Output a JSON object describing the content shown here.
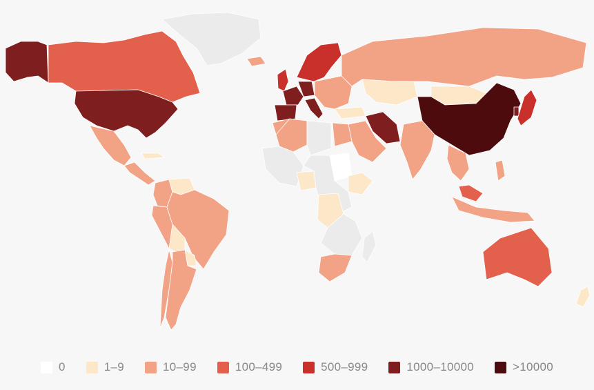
{
  "colors": {
    "no_data": "#ebebeb",
    "zero": "#ffffff",
    "1-9": "#fde7c9",
    "10-99": "#f2a285",
    "100-499": "#e2604c",
    "500-999": "#c9302c",
    "1000-10000": "#7e1e1f",
    ">10000": "#4d0b0d"
  },
  "legend": [
    {
      "label": "0",
      "color": "#ffffff"
    },
    {
      "label": "1–9",
      "color": "#fde7c9"
    },
    {
      "label": "10–99",
      "color": "#f2a285"
    },
    {
      "label": "100–499",
      "color": "#e2604c"
    },
    {
      "label": "500–999",
      "color": "#c9302c"
    },
    {
      "label": "1000–10000",
      "color": "#7e1e1f"
    },
    {
      "label": ">10000",
      "color": "#4d0b0d"
    }
  ],
  "regions": [
    {
      "name": "alaska",
      "bin": "1000-10000"
    },
    {
      "name": "canada",
      "bin": "100-499"
    },
    {
      "name": "greenland",
      "bin": "no_data"
    },
    {
      "name": "usa",
      "bin": "1000-10000"
    },
    {
      "name": "mexico",
      "bin": "10-99"
    },
    {
      "name": "central-america",
      "bin": "10-99"
    },
    {
      "name": "cuba",
      "bin": "1-9"
    },
    {
      "name": "colombia",
      "bin": "10-99"
    },
    {
      "name": "venezuela",
      "bin": "1-9"
    },
    {
      "name": "peru",
      "bin": "10-99"
    },
    {
      "name": "brazil",
      "bin": "10-99"
    },
    {
      "name": "bolivia",
      "bin": "1-9"
    },
    {
      "name": "paraguay",
      "bin": "1-9"
    },
    {
      "name": "chile",
      "bin": "10-99"
    },
    {
      "name": "argentina",
      "bin": "10-99"
    },
    {
      "name": "uk",
      "bin": "500-999"
    },
    {
      "name": "iceland",
      "bin": "10-99"
    },
    {
      "name": "scandinavia",
      "bin": "500-999"
    },
    {
      "name": "france",
      "bin": "1000-10000"
    },
    {
      "name": "spain",
      "bin": "1000-10000"
    },
    {
      "name": "germany",
      "bin": "1000-10000"
    },
    {
      "name": "italy",
      "bin": "1000-10000"
    },
    {
      "name": "eastern-europe",
      "bin": "10-99"
    },
    {
      "name": "russia",
      "bin": "10-99"
    },
    {
      "name": "kazakhstan",
      "bin": "1-9"
    },
    {
      "name": "mongolia",
      "bin": "1-9"
    },
    {
      "name": "china",
      "bin": ">10000"
    },
    {
      "name": "japan",
      "bin": "500-999"
    },
    {
      "name": "south-korea",
      "bin": "1000-10000"
    },
    {
      "name": "iran",
      "bin": "1000-10000"
    },
    {
      "name": "turkey",
      "bin": "1-9"
    },
    {
      "name": "arabia",
      "bin": "10-99"
    },
    {
      "name": "india",
      "bin": "10-99"
    },
    {
      "name": "southeast-asia",
      "bin": "10-99"
    },
    {
      "name": "indonesia",
      "bin": "10-99"
    },
    {
      "name": "malaysia",
      "bin": "100-499"
    },
    {
      "name": "philippines",
      "bin": "10-99"
    },
    {
      "name": "australia",
      "bin": "100-499"
    },
    {
      "name": "new-zealand",
      "bin": "1-9"
    },
    {
      "name": "morocco",
      "bin": "10-99"
    },
    {
      "name": "algeria",
      "bin": "10-99"
    },
    {
      "name": "egypt",
      "bin": "10-99"
    },
    {
      "name": "sahara",
      "bin": "no_data"
    },
    {
      "name": "west-africa",
      "bin": "no_data"
    },
    {
      "name": "nigeria",
      "bin": "1-9"
    },
    {
      "name": "sudan",
      "bin": "zero"
    },
    {
      "name": "ethiopia",
      "bin": "1-9"
    },
    {
      "name": "central-africa",
      "bin": "no_data"
    },
    {
      "name": "congo",
      "bin": "1-9"
    },
    {
      "name": "southern-africa",
      "bin": "no_data"
    },
    {
      "name": "south-africa",
      "bin": "10-99"
    },
    {
      "name": "madagascar",
      "bin": "no_data"
    }
  ]
}
